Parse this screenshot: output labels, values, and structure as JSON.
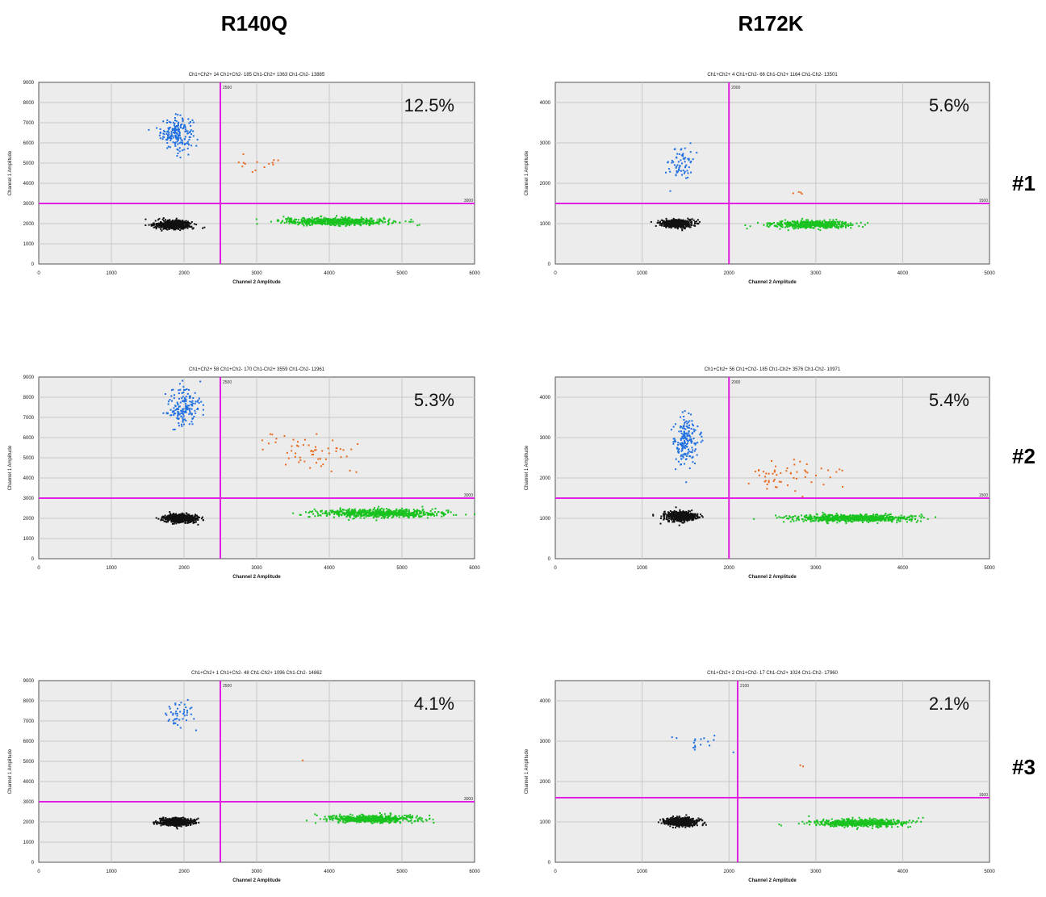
{
  "columns": [
    "R140Q",
    "R172K"
  ],
  "rows": [
    "#1",
    "#2",
    "#3"
  ],
  "colors": {
    "ch1_only": "#1f6fe0",
    "double_pos": "#e86a1f",
    "ch2_only": "#19c31f",
    "double_neg": "#111111",
    "threshold": "#e020e0",
    "plot_bg": "#ececec",
    "grid": "#c8c8c8"
  },
  "chart_data": [
    {
      "type": "scatter",
      "id": "r140q-1",
      "column": "R140Q",
      "row": "#1",
      "title": "Ch1+Ch2+ 14  Ch1+Ch2- 185  Ch1-Ch2+ 1363  Ch1-Ch2- 13885",
      "percent": "12.5%",
      "xlabel": "Channel 2 Amplitude",
      "ylabel": "Channel 1 Amplitude",
      "xlim": [
        0,
        6000
      ],
      "ylim": [
        0,
        9000
      ],
      "xticks": [
        0,
        1000,
        2000,
        3000,
        4000,
        5000,
        6000
      ],
      "yticks": [
        0,
        1000,
        2000,
        3000,
        4000,
        5000,
        6000,
        7000,
        8000,
        9000
      ],
      "x_threshold": 2500,
      "y_threshold": 3000,
      "x_threshold_label": "2500",
      "y_threshold_label": "3000",
      "clusters": [
        {
          "name": "Ch1+Ch2-",
          "color": "ch1_only",
          "cx": 1900,
          "cy": 6500,
          "sx": 110,
          "sy": 400,
          "n": 185
        },
        {
          "name": "Ch1+Ch2+",
          "color": "double_pos",
          "cx": 3100,
          "cy": 4900,
          "sx": 250,
          "sy": 300,
          "n": 14
        },
        {
          "name": "Ch1-Ch2+",
          "color": "ch2_only",
          "cx": 4100,
          "cy": 2100,
          "sx": 380,
          "sy": 90,
          "n": 600
        },
        {
          "name": "Ch1-Ch2-",
          "color": "double_neg",
          "cx": 1850,
          "cy": 1950,
          "sx": 120,
          "sy": 100,
          "n": 600
        }
      ]
    },
    {
      "type": "scatter",
      "id": "r172k-1",
      "column": "R172K",
      "row": "#1",
      "title": "Ch1+Ch2+ 4  Ch1+Ch2- 66  Ch1-Ch2+ 1164  Ch1-Ch2- 13501",
      "percent": "5.6%",
      "xlabel": "Channel 2 Amplitude",
      "ylabel": "Channel 1 Amplitude",
      "xlim": [
        0,
        5000
      ],
      "ylim": [
        0,
        4500
      ],
      "xticks": [
        0,
        1000,
        2000,
        3000,
        4000,
        5000
      ],
      "yticks": [
        0,
        1000,
        2000,
        3000,
        4000
      ],
      "x_threshold": 2000,
      "y_threshold": 1500,
      "x_threshold_label": "2000",
      "y_threshold_label": "1500",
      "clusters": [
        {
          "name": "Ch1+Ch2-",
          "color": "ch1_only",
          "cx": 1450,
          "cy": 2500,
          "sx": 70,
          "sy": 230,
          "n": 66
        },
        {
          "name": "Ch1+Ch2+",
          "color": "double_pos",
          "cx": 2800,
          "cy": 1780,
          "sx": 40,
          "sy": 40,
          "n": 4
        },
        {
          "name": "Ch1-Ch2+",
          "color": "ch2_only",
          "cx": 2950,
          "cy": 980,
          "sx": 230,
          "sy": 45,
          "n": 500
        },
        {
          "name": "Ch1-Ch2-",
          "color": "double_neg",
          "cx": 1400,
          "cy": 1000,
          "sx": 90,
          "sy": 45,
          "n": 600
        }
      ]
    },
    {
      "type": "scatter",
      "id": "r140q-2",
      "column": "R140Q",
      "row": "#2",
      "title": "Ch1+Ch2+ 58  Ch1+Ch2- 170  Ch1-Ch2+ 3559  Ch1-Ch2- 11961",
      "percent": "5.3%",
      "xlabel": "Channel 2 Amplitude",
      "ylabel": "Channel 1 Amplitude",
      "xlim": [
        0,
        6000
      ],
      "ylim": [
        0,
        9000
      ],
      "xticks": [
        0,
        1000,
        2000,
        3000,
        4000,
        5000,
        6000
      ],
      "yticks": [
        0,
        1000,
        2000,
        3000,
        4000,
        5000,
        6000,
        7000,
        8000,
        9000
      ],
      "x_threshold": 2500,
      "y_threshold": 3000,
      "x_threshold_label": "2500",
      "y_threshold_label": "3000",
      "clusters": [
        {
          "name": "Ch1+Ch2-",
          "color": "ch1_only",
          "cx": 2000,
          "cy": 7500,
          "sx": 120,
          "sy": 500,
          "n": 170
        },
        {
          "name": "Ch1+Ch2+",
          "color": "double_pos",
          "cx": 3700,
          "cy": 5200,
          "sx": 350,
          "sy": 500,
          "n": 58
        },
        {
          "name": "Ch1-Ch2+",
          "color": "ch2_only",
          "cx": 4700,
          "cy": 2250,
          "sx": 420,
          "sy": 100,
          "n": 900
        },
        {
          "name": "Ch1-Ch2-",
          "color": "double_neg",
          "cx": 1950,
          "cy": 2000,
          "sx": 110,
          "sy": 100,
          "n": 600
        }
      ]
    },
    {
      "type": "scatter",
      "id": "r172k-2",
      "column": "R172K",
      "row": "#2",
      "title": "Ch1+Ch2+ 56  Ch1+Ch2- 185  Ch1-Ch2+ 3576  Ch1-Ch2- 10971",
      "percent": "5.4%",
      "xlabel": "Channel 2 Amplitude",
      "ylabel": "Channel 1 Amplitude",
      "xlim": [
        0,
        5000
      ],
      "ylim": [
        0,
        4500
      ],
      "xticks": [
        0,
        1000,
        2000,
        3000,
        4000,
        5000
      ],
      "yticks": [
        0,
        1000,
        2000,
        3000,
        4000
      ],
      "x_threshold": 2000,
      "y_threshold": 1500,
      "x_threshold_label": "2000",
      "y_threshold_label": "1500",
      "clusters": [
        {
          "name": "Ch1+Ch2-",
          "color": "ch1_only",
          "cx": 1500,
          "cy": 2900,
          "sx": 70,
          "sy": 300,
          "n": 185
        },
        {
          "name": "Ch1+Ch2+",
          "color": "double_pos",
          "cx": 2700,
          "cy": 2050,
          "sx": 250,
          "sy": 220,
          "n": 56
        },
        {
          "name": "Ch1-Ch2+",
          "color": "ch2_only",
          "cx": 3400,
          "cy": 1000,
          "sx": 350,
          "sy": 45,
          "n": 900
        },
        {
          "name": "Ch1-Ch2-",
          "color": "double_neg",
          "cx": 1450,
          "cy": 1050,
          "sx": 90,
          "sy": 60,
          "n": 600
        }
      ]
    },
    {
      "type": "scatter",
      "id": "r140q-3",
      "column": "R140Q",
      "row": "#3",
      "title": "Ch1+Ch2+ 1  Ch1+Ch2- 48  Ch1-Ch2+ 1096  Ch1-Ch2- 14862",
      "percent": "4.1%",
      "xlabel": "Channel 2 Amplitude",
      "ylabel": "Channel 1 Amplitude",
      "xlim": [
        0,
        6000
      ],
      "ylim": [
        0,
        9000
      ],
      "xticks": [
        0,
        1000,
        2000,
        3000,
        4000,
        5000,
        6000
      ],
      "yticks": [
        0,
        1000,
        2000,
        3000,
        4000,
        5000,
        6000,
        7000,
        8000,
        9000
      ],
      "x_threshold": 2500,
      "y_threshold": 3000,
      "x_threshold_label": "2500",
      "y_threshold_label": "3000",
      "clusters": [
        {
          "name": "Ch1+Ch2-",
          "color": "ch1_only",
          "cx": 1950,
          "cy": 7400,
          "sx": 90,
          "sy": 400,
          "n": 48
        },
        {
          "name": "Ch1+Ch2+",
          "color": "double_pos",
          "cx": 3650,
          "cy": 5050,
          "sx": 20,
          "sy": 20,
          "n": 1
        },
        {
          "name": "Ch1-Ch2+",
          "color": "ch2_only",
          "cx": 4550,
          "cy": 2150,
          "sx": 300,
          "sy": 90,
          "n": 600
        },
        {
          "name": "Ch1-Ch2-",
          "color": "double_neg",
          "cx": 1900,
          "cy": 2000,
          "sx": 110,
          "sy": 90,
          "n": 600
        }
      ]
    },
    {
      "type": "scatter",
      "id": "r172k-3",
      "column": "R172K",
      "row": "#3",
      "title": "Ch1+Ch2+ 2  Ch1+Ch2- 17  Ch1-Ch2+ 1024  Ch1-Ch2- 17960",
      "percent": "2.1%",
      "xlabel": "Channel 2 Amplitude",
      "ylabel": "Channel 1 Amplitude",
      "xlim": [
        0,
        5000
      ],
      "ylim": [
        0,
        4500
      ],
      "xticks": [
        0,
        1000,
        2000,
        3000,
        4000,
        5000
      ],
      "yticks": [
        0,
        1000,
        2000,
        3000,
        4000
      ],
      "x_threshold": 2100,
      "y_threshold": 1600,
      "x_threshold_label": "2100",
      "y_threshold_label": "1600",
      "clusters": [
        {
          "name": "Ch1+Ch2-",
          "color": "ch1_only",
          "cx": 1650,
          "cy": 2950,
          "sx": 160,
          "sy": 120,
          "n": 17
        },
        {
          "name": "Ch1+Ch2+",
          "color": "double_pos",
          "cx": 2850,
          "cy": 2400,
          "sx": 20,
          "sy": 20,
          "n": 2
        },
        {
          "name": "Ch1-Ch2+",
          "color": "ch2_only",
          "cx": 3500,
          "cy": 980,
          "sx": 260,
          "sy": 45,
          "n": 600
        },
        {
          "name": "Ch1-Ch2-",
          "color": "double_neg",
          "cx": 1450,
          "cy": 1000,
          "sx": 90,
          "sy": 50,
          "n": 600
        }
      ]
    }
  ]
}
